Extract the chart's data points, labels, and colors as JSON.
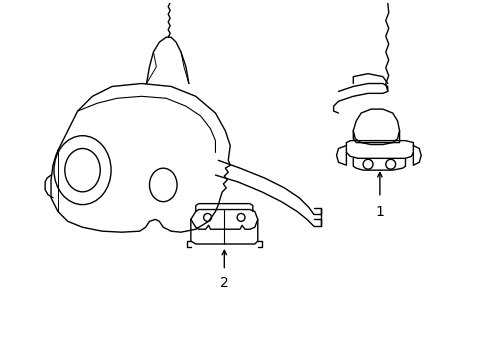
{
  "background": "#ffffff",
  "line_color": "#000000",
  "line_width": 1.0,
  "fig_width": 4.89,
  "fig_height": 3.6,
  "dpi": 100
}
